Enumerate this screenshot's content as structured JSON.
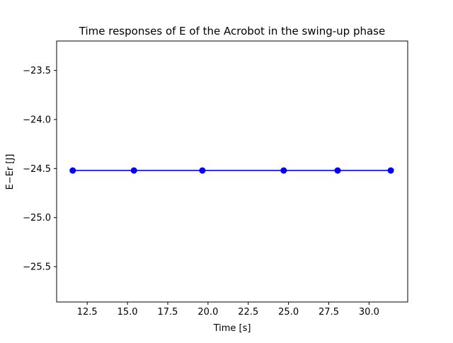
{
  "chart_data": {
    "type": "line",
    "title": "Time responses of E of the Acrobot in the swing-up phase",
    "xlabel": "Time [s]",
    "ylabel": "E−Er [J]",
    "xlim": [
      10.6,
      32.4
    ],
    "ylim": [
      -25.86,
      -23.2
    ],
    "xticks": [
      12.5,
      15.0,
      17.5,
      20.0,
      22.5,
      25.0,
      27.5,
      30.0
    ],
    "xtick_labels": [
      "12.5",
      "15.0",
      "17.5",
      "20.0",
      "22.5",
      "25.0",
      "27.5",
      "30.0"
    ],
    "yticks": [
      -23.5,
      -24.0,
      -24.5,
      -25.0,
      -25.5
    ],
    "ytick_labels": [
      "−23.5",
      "−24.0",
      "−24.5",
      "−25.0",
      "−25.5"
    ],
    "grid": false,
    "series": [
      {
        "color": "#0000ff",
        "marker": "circle",
        "x": [
          11.6,
          15.4,
          19.65,
          24.7,
          28.05,
          31.35
        ],
        "y": [
          -24.52,
          -24.52,
          -24.52,
          -24.52,
          -24.52,
          -24.52
        ]
      }
    ]
  }
}
